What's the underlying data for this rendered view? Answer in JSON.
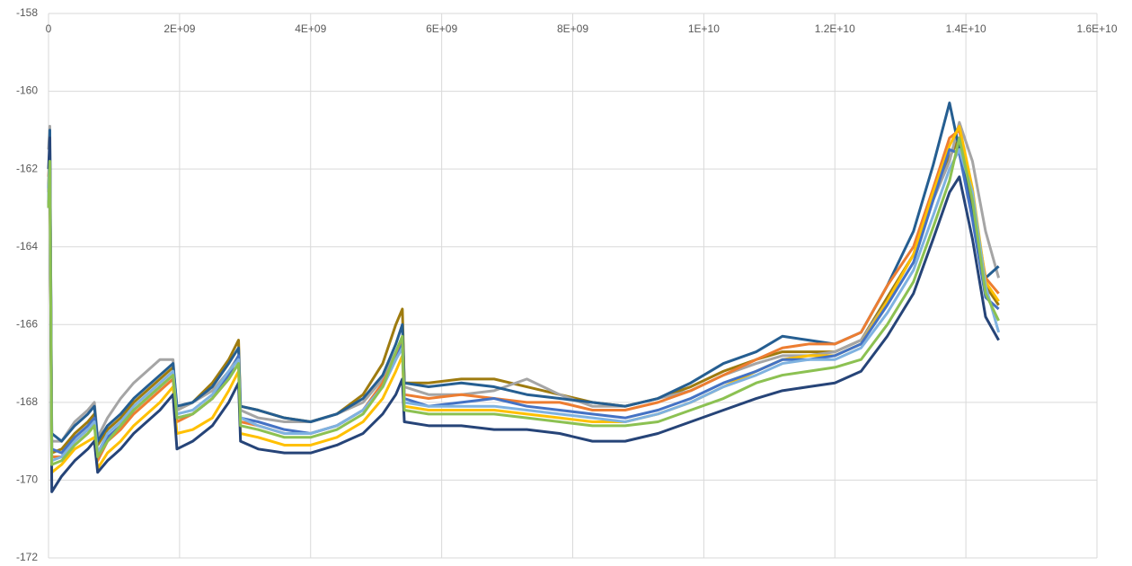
{
  "chart_data": {
    "type": "line",
    "xlim": [
      0,
      16000000000
    ],
    "xticks": [
      0,
      {
        "value": 2000000000,
        "label": "2E+09"
      },
      {
        "value": 4000000000,
        "label": "4E+09"
      },
      {
        "value": 6000000000,
        "label": "6E+09"
      },
      {
        "value": 8000000000,
        "label": "8E+09"
      },
      {
        "value": 10000000000,
        "label": "1E+10"
      },
      {
        "value": 12000000000,
        "label": "1.2E+10"
      },
      {
        "value": 14000000000,
        "label": "1.4E+10"
      },
      {
        "value": 16000000000,
        "label": "1.6E+10"
      }
    ],
    "ylim": [
      -172,
      -158
    ],
    "yticks": [
      -172,
      -170,
      -168,
      -166,
      -164,
      -162,
      -160,
      -158
    ],
    "grid": true,
    "x": [
      0,
      20000000.0,
      50000000.0,
      200000000.0,
      400000000.0,
      600000000.0,
      700000000.0,
      750000000.0,
      900000000.0,
      1100000000.0,
      1300000000.0,
      1500000000.0,
      1700000000.0,
      1900000000.0,
      1960000000.0,
      2200000000.0,
      2500000000.0,
      2750000000.0,
      2900000000.0,
      2930000000.0,
      3200000000.0,
      3600000000.0,
      4000000000.0,
      4400000000.0,
      4800000000.0,
      5100000000.0,
      5300000000.0,
      5400000000.0,
      5430000000.0,
      5800000000.0,
      6300000000.0,
      6800000000.0,
      7300000000.0,
      7800000000.0,
      8300000000.0,
      8800000000.0,
      9300000000.0,
      9800000000.0,
      10300000000.0,
      10800000000.0,
      11200000000.0,
      11600000000.0,
      12000000000.0,
      12400000000.0,
      12800000000.0,
      13200000000.0,
      13500000000.0,
      13750000000.0,
      13900000000.0,
      14100000000.0,
      14300000000.0,
      14500000000.0
    ],
    "series": [
      {
        "color": "#9e7b0f",
        "values": [
          -162.6,
          -161.5,
          -169.3,
          -169.2,
          -168.8,
          -168.5,
          -168.3,
          -169.1,
          -168.7,
          -168.4,
          -168.0,
          -167.7,
          -167.4,
          -167.1,
          -168.2,
          -168.0,
          -167.5,
          -166.9,
          -166.4,
          -168.1,
          -168.2,
          -168.4,
          -168.5,
          -168.3,
          -167.8,
          -167.0,
          -166.0,
          -165.6,
          -167.5,
          -167.5,
          -167.4,
          -167.4,
          -167.6,
          -167.8,
          -168.0,
          -168.1,
          -167.9,
          -167.6,
          -167.2,
          -166.9,
          -166.7,
          -166.7,
          -166.7,
          -166.4,
          -165.3,
          -164.2,
          -162.7,
          -161.7,
          -161.2,
          -163.0,
          -165.0,
          -165.5
        ]
      },
      {
        "color": "#a5a5a5",
        "values": [
          -161.5,
          -160.9,
          -169.0,
          -169.0,
          -168.5,
          -168.2,
          -168.0,
          -168.9,
          -168.4,
          -167.9,
          -167.5,
          -167.2,
          -166.9,
          -166.9,
          -168.2,
          -168.0,
          -167.7,
          -167.2,
          -166.8,
          -168.2,
          -168.4,
          -168.5,
          -168.5,
          -168.3,
          -168.0,
          -167.4,
          -166.7,
          -166.5,
          -167.6,
          -167.8,
          -167.8,
          -167.7,
          -167.4,
          -167.8,
          -168.1,
          -168.1,
          -167.9,
          -167.7,
          -167.3,
          -167.0,
          -166.8,
          -166.8,
          -166.7,
          -166.4,
          -165.4,
          -164.2,
          -162.8,
          -161.8,
          -160.8,
          -161.8,
          -163.6,
          -164.8
        ]
      },
      {
        "color": "#255e91",
        "values": [
          -163.0,
          -161.0,
          -168.8,
          -169.0,
          -168.6,
          -168.3,
          -168.1,
          -169.0,
          -168.6,
          -168.3,
          -167.9,
          -167.6,
          -167.3,
          -167.0,
          -168.1,
          -168.0,
          -167.6,
          -167.0,
          -166.6,
          -168.1,
          -168.2,
          -168.4,
          -168.5,
          -168.3,
          -167.9,
          -167.3,
          -166.5,
          -166.0,
          -167.5,
          -167.6,
          -167.5,
          -167.6,
          -167.8,
          -167.9,
          -168.0,
          -168.1,
          -167.9,
          -167.5,
          -167.0,
          -166.7,
          -166.3,
          -166.4,
          -166.5,
          -166.2,
          -165.0,
          -163.6,
          -161.9,
          -160.3,
          -161.5,
          -163.2,
          -164.8,
          -164.5
        ]
      },
      {
        "color": "#ed7d31",
        "values": [
          -162.2,
          -161.5,
          -169.4,
          -169.4,
          -169.0,
          -168.7,
          -168.5,
          -169.5,
          -169.0,
          -168.7,
          -168.3,
          -168.0,
          -167.7,
          -167.4,
          -168.5,
          -168.3,
          -167.9,
          -167.4,
          -167.0,
          -168.5,
          -168.6,
          -168.8,
          -168.8,
          -168.6,
          -168.2,
          -167.5,
          -166.8,
          -166.4,
          -167.8,
          -167.9,
          -167.8,
          -167.9,
          -168.0,
          -168.0,
          -168.2,
          -168.2,
          -168.0,
          -167.7,
          -167.3,
          -166.9,
          -166.6,
          -166.5,
          -166.5,
          -166.2,
          -165.0,
          -164.0,
          -162.5,
          -161.2,
          -161.0,
          -162.8,
          -164.8,
          -165.2
        ]
      },
      {
        "color": "#ffc000",
        "values": [
          -162.4,
          -161.6,
          -169.8,
          -169.6,
          -169.2,
          -169.0,
          -168.9,
          -169.7,
          -169.3,
          -169.0,
          -168.6,
          -168.3,
          -168.0,
          -167.6,
          -168.8,
          -168.7,
          -168.4,
          -167.7,
          -167.2,
          -168.8,
          -168.9,
          -169.1,
          -169.1,
          -168.9,
          -168.5,
          -167.9,
          -167.2,
          -166.8,
          -168.1,
          -168.2,
          -168.2,
          -168.2,
          -168.3,
          -168.4,
          -168.5,
          -168.5,
          -168.3,
          -168.0,
          -167.6,
          -167.2,
          -166.9,
          -166.8,
          -166.8,
          -166.5,
          -165.4,
          -164.2,
          -162.6,
          -161.4,
          -160.9,
          -162.5,
          -164.9,
          -165.4
        ]
      },
      {
        "color": "#4472c4",
        "values": [
          -162.5,
          -161.3,
          -169.2,
          -169.3,
          -168.9,
          -168.6,
          -168.4,
          -169.3,
          -168.9,
          -168.6,
          -168.2,
          -167.9,
          -167.6,
          -167.3,
          -168.4,
          -168.3,
          -167.9,
          -167.3,
          -166.8,
          -168.4,
          -168.5,
          -168.7,
          -168.8,
          -168.6,
          -168.2,
          -167.6,
          -166.9,
          -166.5,
          -167.9,
          -168.1,
          -168.0,
          -167.9,
          -168.1,
          -168.2,
          -168.3,
          -168.4,
          -168.2,
          -167.9,
          -167.5,
          -167.2,
          -166.9,
          -166.9,
          -166.8,
          -166.5,
          -165.5,
          -164.4,
          -162.8,
          -161.5,
          -161.6,
          -163.3,
          -165.3,
          -165.6
        ]
      },
      {
        "color": "#7fb2e0",
        "values": [
          -162.8,
          -161.4,
          -169.5,
          -169.4,
          -169.0,
          -168.7,
          -168.5,
          -169.3,
          -168.8,
          -168.5,
          -168.1,
          -167.8,
          -167.5,
          -167.2,
          -168.3,
          -168.2,
          -167.8,
          -167.2,
          -166.9,
          -168.4,
          -168.6,
          -168.8,
          -168.8,
          -168.6,
          -168.2,
          -167.6,
          -166.9,
          -166.6,
          -168.0,
          -168.1,
          -168.1,
          -168.1,
          -168.2,
          -168.3,
          -168.4,
          -168.5,
          -168.3,
          -168.0,
          -167.6,
          -167.3,
          -167.0,
          -166.9,
          -166.9,
          -166.6,
          -165.7,
          -164.6,
          -163.2,
          -162.0,
          -161.5,
          -162.6,
          -165.0,
          -166.2
        ]
      },
      {
        "color": "#264478",
        "values": [
          -162.0,
          -161.2,
          -170.3,
          -169.9,
          -169.5,
          -169.2,
          -169.0,
          -169.8,
          -169.5,
          -169.2,
          -168.8,
          -168.5,
          -168.2,
          -167.8,
          -169.2,
          -169.0,
          -168.6,
          -168.0,
          -167.5,
          -169.0,
          -169.2,
          -169.3,
          -169.3,
          -169.1,
          -168.8,
          -168.3,
          -167.8,
          -167.4,
          -168.5,
          -168.6,
          -168.6,
          -168.7,
          -168.7,
          -168.8,
          -169.0,
          -169.0,
          -168.8,
          -168.5,
          -168.2,
          -167.9,
          -167.7,
          -167.6,
          -167.5,
          -167.2,
          -166.3,
          -165.2,
          -163.8,
          -162.6,
          -162.2,
          -163.8,
          -165.8,
          -166.4
        ]
      },
      {
        "color": "#8cc152",
        "values": [
          -163.0,
          -161.8,
          -169.6,
          -169.5,
          -169.1,
          -168.8,
          -168.6,
          -169.4,
          -169.0,
          -168.6,
          -168.2,
          -167.9,
          -167.6,
          -167.3,
          -168.4,
          -168.3,
          -167.9,
          -167.4,
          -167.0,
          -168.6,
          -168.7,
          -168.9,
          -168.9,
          -168.7,
          -168.3,
          -167.6,
          -166.7,
          -166.3,
          -168.2,
          -168.3,
          -168.3,
          -168.3,
          -168.4,
          -168.5,
          -168.6,
          -168.6,
          -168.5,
          -168.2,
          -167.9,
          -167.5,
          -167.3,
          -167.2,
          -167.1,
          -166.9,
          -166.0,
          -164.9,
          -163.5,
          -162.3,
          -161.2,
          -162.8,
          -165.2,
          -165.9
        ]
      }
    ]
  }
}
